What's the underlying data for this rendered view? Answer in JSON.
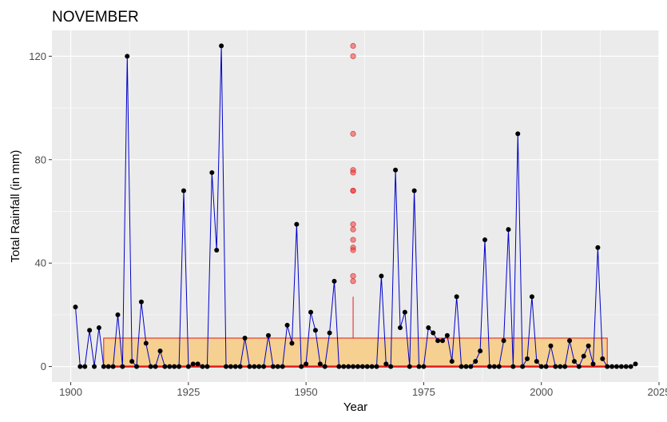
{
  "chart_data": {
    "type": "line",
    "title": "NOVEMBER",
    "xlabel": "Year",
    "ylabel": "Total Rainfall (in mm)",
    "xlim": [
      1896,
      2025
    ],
    "ylim": [
      -6,
      130
    ],
    "x_ticks": [
      1900,
      1925,
      1950,
      1975,
      2000,
      2025
    ],
    "y_ticks": [
      0,
      40,
      80,
      120
    ],
    "grid": true,
    "legend": "none",
    "series": [
      {
        "type": "line+points",
        "line_color": "#0000cc",
        "point_color": "#000000",
        "x": [
          1901,
          1902,
          1903,
          1904,
          1905,
          1906,
          1907,
          1908,
          1909,
          1910,
          1911,
          1912,
          1913,
          1914,
          1915,
          1916,
          1917,
          1918,
          1919,
          1920,
          1921,
          1922,
          1923,
          1924,
          1925,
          1926,
          1927,
          1928,
          1929,
          1930,
          1931,
          1932,
          1933,
          1934,
          1935,
          1936,
          1937,
          1938,
          1939,
          1940,
          1941,
          1942,
          1943,
          1944,
          1945,
          1946,
          1947,
          1948,
          1949,
          1950,
          1951,
          1952,
          1953,
          1954,
          1955,
          1956,
          1957,
          1958,
          1959,
          1960,
          1961,
          1962,
          1963,
          1964,
          1965,
          1966,
          1967,
          1968,
          1969,
          1970,
          1971,
          1972,
          1973,
          1974,
          1975,
          1976,
          1977,
          1978,
          1979,
          1980,
          1981,
          1982,
          1983,
          1984,
          1985,
          1986,
          1987,
          1988,
          1989,
          1990,
          1991,
          1992,
          1993,
          1994,
          1995,
          1996,
          1997,
          1998,
          1999,
          2000,
          2001,
          2002,
          2003,
          2004,
          2005,
          2006,
          2007,
          2008,
          2009,
          2010,
          2011,
          2012,
          2013,
          2014,
          2015,
          2016,
          2017,
          2018,
          2019,
          2020
        ],
        "y": [
          23,
          0,
          0,
          14,
          0,
          15,
          0,
          0,
          0,
          20,
          0,
          120,
          2,
          0,
          25,
          9,
          0,
          0,
          6,
          0,
          0,
          0,
          0,
          68,
          0,
          1,
          1,
          0,
          0,
          75,
          45,
          124,
          0,
          0,
          0,
          0,
          11,
          0,
          0,
          0,
          0,
          12,
          0,
          0,
          0,
          16,
          9,
          55,
          0,
          1,
          21,
          14,
          1,
          0,
          13,
          33,
          0,
          0,
          0,
          0,
          0,
          0,
          0,
          0,
          0,
          35,
          1,
          0,
          76,
          15,
          21,
          0,
          68,
          0,
          0,
          15,
          13,
          10,
          10,
          12,
          2,
          27,
          0,
          0,
          0,
          2,
          6,
          49,
          0,
          0,
          0,
          10,
          53,
          0,
          90,
          0,
          3,
          27,
          2,
          0,
          0,
          8,
          0,
          0,
          0,
          10,
          2,
          0,
          4,
          8,
          1,
          46,
          3,
          0,
          0,
          0,
          0,
          0,
          0,
          1
        ]
      }
    ],
    "boxplot": {
      "x": 1960,
      "q1": 0,
      "median": 0,
      "q3": 11,
      "whisker_low": 0,
      "whisker_high": 27,
      "x_span": [
        1907,
        2014
      ],
      "fill": "#f5d090",
      "border": "#e31a1c",
      "outliers": [
        124,
        120,
        90,
        76,
        75,
        68,
        68,
        55,
        53,
        49,
        46,
        45,
        35,
        33
      ]
    }
  }
}
